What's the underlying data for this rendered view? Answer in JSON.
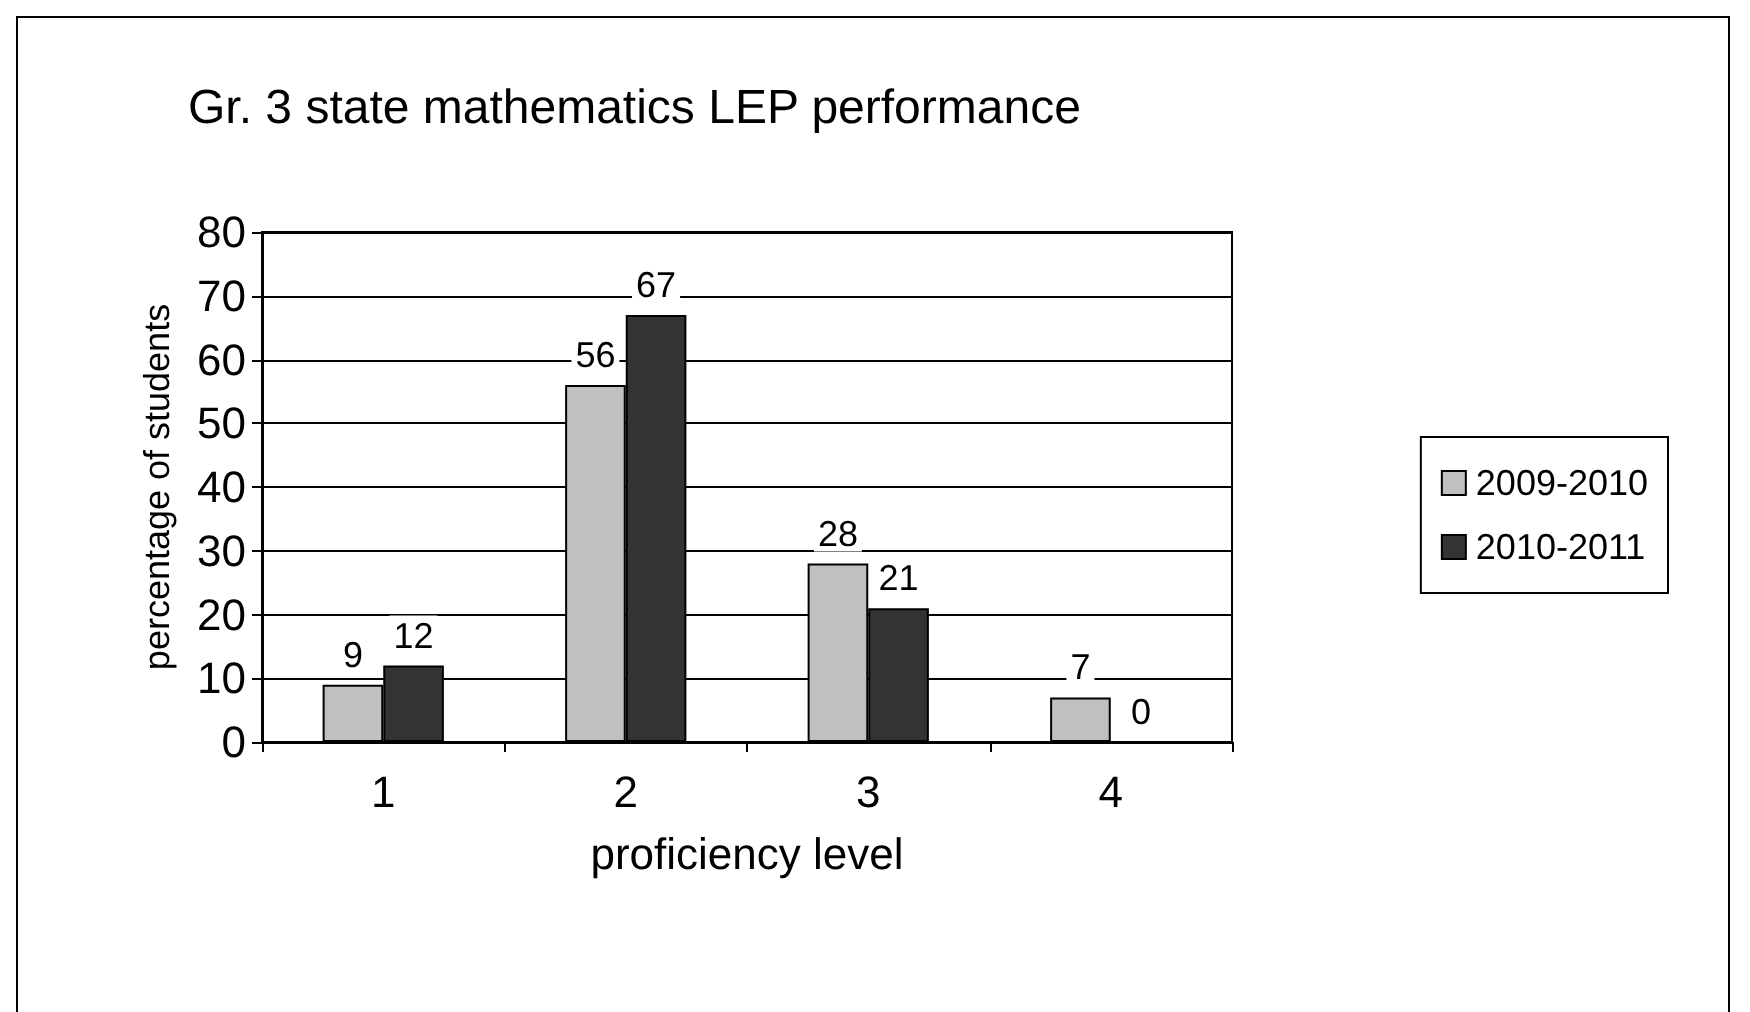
{
  "chart_data": {
    "type": "bar",
    "title": "Gr. 3 state mathematics LEP performance",
    "xlabel": "proficiency level",
    "ylabel": "percentage of students",
    "categories": [
      "1",
      "2",
      "3",
      "4"
    ],
    "series": [
      {
        "name": "2009-2010",
        "color": "#c0c0c0",
        "values": [
          9,
          56,
          28,
          7
        ]
      },
      {
        "name": "2010-2011",
        "color": "#333333",
        "values": [
          12,
          67,
          21,
          0
        ]
      }
    ],
    "ylim": [
      0,
      80
    ],
    "yticks": [
      0,
      10,
      20,
      30,
      40,
      50,
      60,
      70,
      80
    ],
    "grid": "y",
    "legend": "right",
    "data_labels": true
  }
}
